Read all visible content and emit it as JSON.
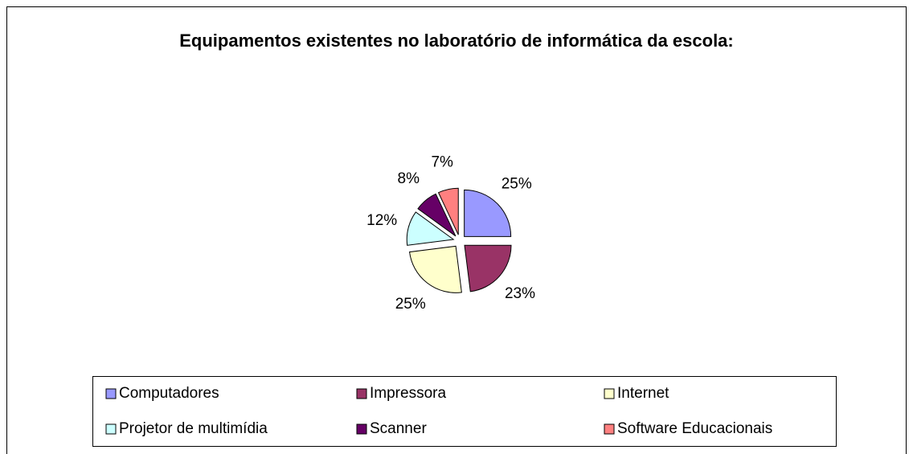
{
  "chart_data": {
    "type": "pie",
    "title": "Equipamentos existentes no laboratório de informática da escola:",
    "categories": [
      "Computadores",
      "Impressora",
      "Internet",
      "Projetor de  multimídia",
      "Scanner",
      "Software Educacionais"
    ],
    "values": [
      25,
      23,
      25,
      12,
      8,
      7
    ],
    "value_labels": [
      "25%",
      "23%",
      "25%",
      "12%",
      "8%",
      "7%"
    ],
    "colors": [
      "#9999ff",
      "#993366",
      "#ffffcc",
      "#ccffff",
      "#660066",
      "#ff8080"
    ],
    "legend": "bottom"
  }
}
